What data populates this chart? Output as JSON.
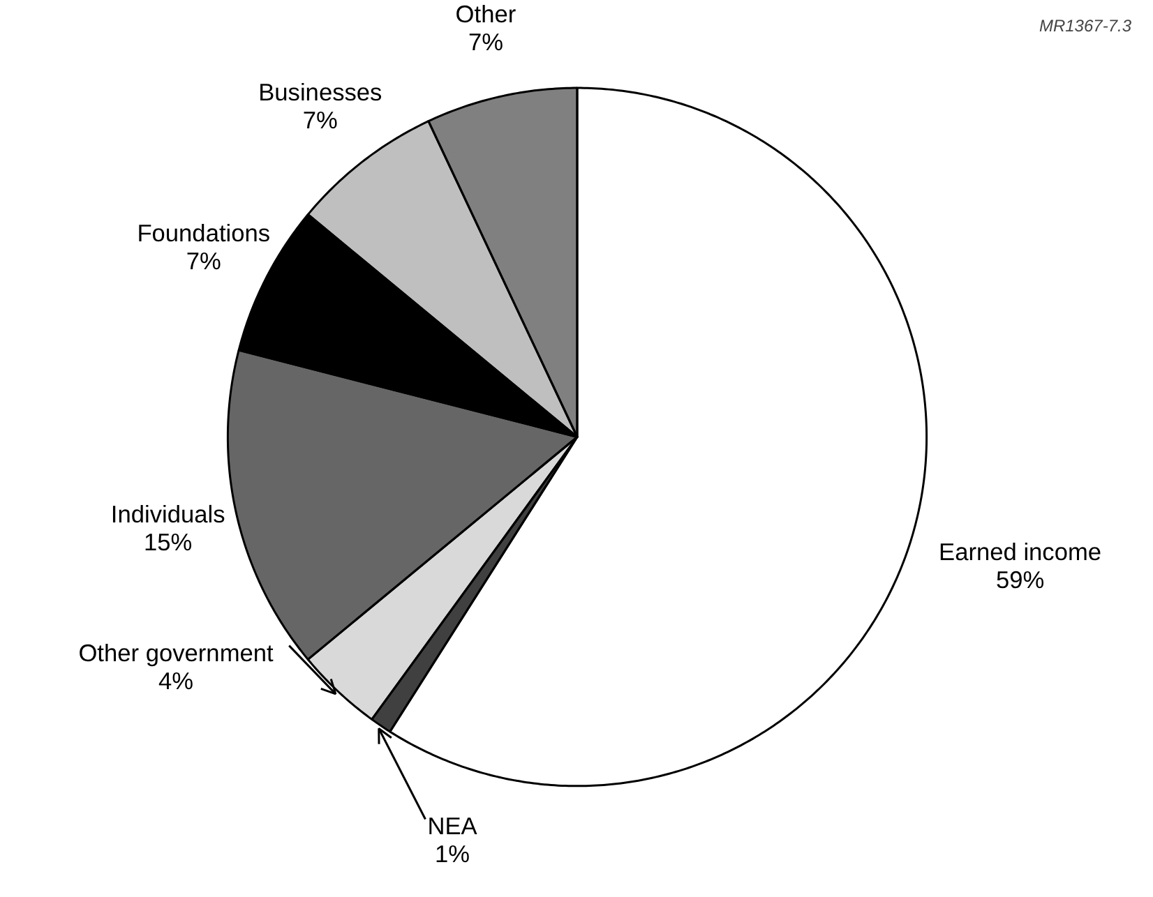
{
  "chart_data": {
    "type": "pie",
    "categories": [
      "Earned income",
      "NEA",
      "Other government",
      "Individuals",
      "Foundations",
      "Businesses",
      "Other"
    ],
    "values": [
      59,
      1,
      4,
      15,
      7,
      7,
      7
    ],
    "value_labels": [
      "59%",
      "1%",
      "4%",
      "15%",
      "7%",
      "7%",
      "7%"
    ],
    "colors": [
      "#ffffff",
      "#404040",
      "#d9d9d9",
      "#666666",
      "#000000",
      "#bfbfbf",
      "#808080"
    ],
    "annotations": [
      "MR1367-7.3"
    ]
  }
}
